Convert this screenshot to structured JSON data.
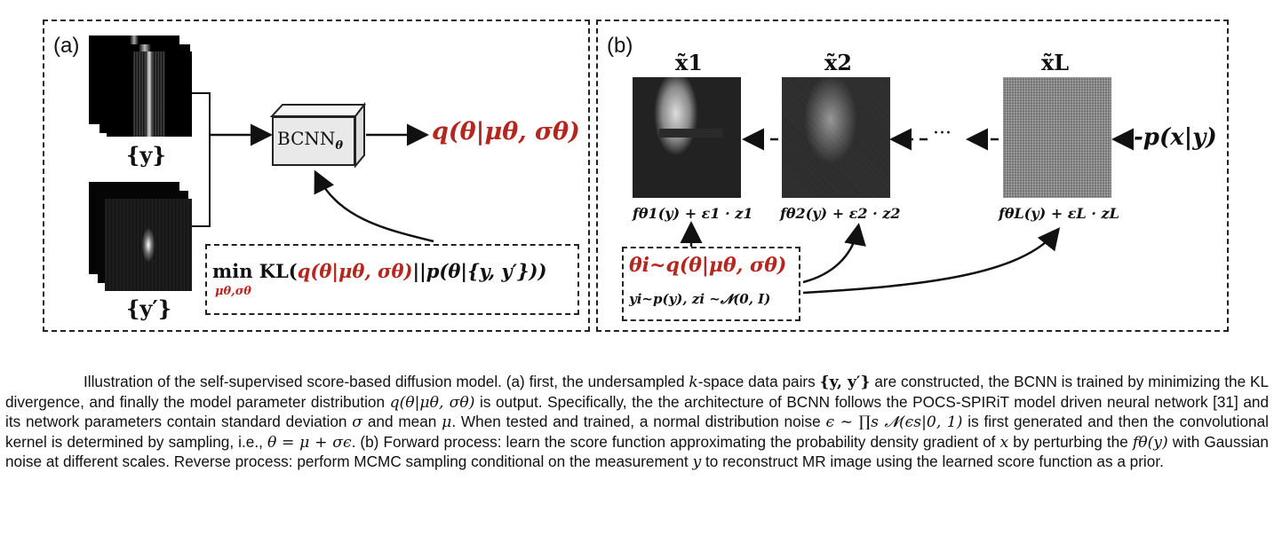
{
  "panel_a": {
    "label": "(a)",
    "y_label": "{y}",
    "y_prime_label": "{y′}",
    "bcnn_label": "BCNN",
    "bcnn_sub": "θ",
    "output_q": "q(θ|μθ, σθ)",
    "objective_min": "min",
    "objective_min_sub": "μθ,σθ",
    "objective_kl": "KL(",
    "objective_q": "q(θ|μθ, σθ)",
    "objective_rest": "||p(θ|{y, y′}))"
  },
  "panel_b": {
    "label": "(b)",
    "images": [
      {
        "title": "x̃1",
        "formula": "fθ1(y) + ε1 · z1"
      },
      {
        "title": "x̃2",
        "formula": "fθ2(y) + ε2 · z2"
      },
      {
        "title": "x̃L",
        "formula": "fθL(y) + εL · zL"
      }
    ],
    "ellipsis": "···",
    "target": "-p(x|y)",
    "sample_theta": "θi~q(θ|μθ, σθ)",
    "sample_y": "yi~p(y), zi ~𝓝(0, I)"
  },
  "caption": {
    "text_1": "Illustration of the self-supervised score-based diffusion model. (a) first, the undersampled ",
    "k": "k",
    "text_2": "-space data pairs ",
    "pairs": "{y, y′}",
    "text_3": " are constructed, the BCNN is trained by minimizing the KL divergence, and finally the model parameter distribution ",
    "q": "q(θ|μθ, σθ)",
    "text_4": " is output. Specifically, the the architecture of BCNN follows the POCS-SPIRiT model driven neural network [31] and its network parameters contain standard deviation ",
    "sigma": "σ",
    "text_5": " and mean ",
    "mu": "μ",
    "text_6": ". When tested and trained, a normal distribution noise ",
    "noise": "ϵ ∼ ∏s 𝓝(ϵs|0, 1)",
    "text_7": " is first generated and then the convolutional kernel is determined by sampling, i.e., ",
    "theta_eq": "θ = μ + σϵ",
    "text_8": ". (b) Forward process: learn the score function approximating the probability density gradient of ",
    "x": "x",
    "text_9": " by perturbing the ",
    "f": "fθ(y)",
    "text_10": " with Gaussian noise at different scales. Reverse process: perform MCMC sampling conditional on the measurement ",
    "y": "y",
    "text_11": " to reconstruct MR image using the learned score function as a prior."
  },
  "colors": {
    "accent_red": "#b5261e",
    "border": "#222222"
  }
}
